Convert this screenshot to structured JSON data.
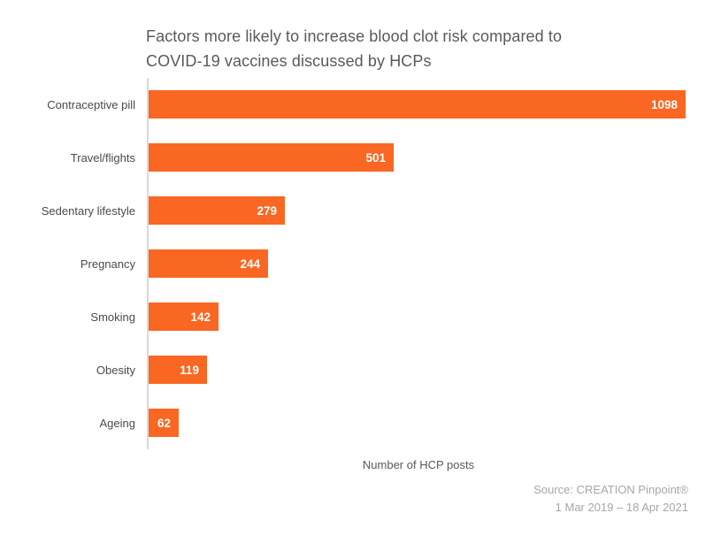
{
  "title": {
    "line1": "Factors more likely to increase blood clot risk compared to",
    "line2": "COVID-19 vaccines discussed by HCPs"
  },
  "chart_data": {
    "type": "bar",
    "orientation": "horizontal",
    "title": "Factors more likely to increase blood clot risk compared to COVID-19 vaccines discussed by HCPs",
    "categories": [
      "Contraceptive pill",
      "Travel/flights",
      "Sedentary lifestyle",
      "Pregnancy",
      "Smoking",
      "Obesity",
      "Ageing"
    ],
    "values": [
      1098,
      501,
      279,
      244,
      142,
      119,
      62
    ],
    "xlabel": "Number of HCP posts",
    "ylabel": "",
    "xlim": [
      0,
      1100
    ],
    "grid": false,
    "legend": false,
    "bar_color": "#f96722",
    "value_label_color": "#ffffff",
    "axis_line_color": "#d9d9d9"
  },
  "footer": {
    "source_line1": "Source: CREATION Pinpoint®",
    "source_line2": "1 Mar 2019 – 18 Apr 2021"
  }
}
